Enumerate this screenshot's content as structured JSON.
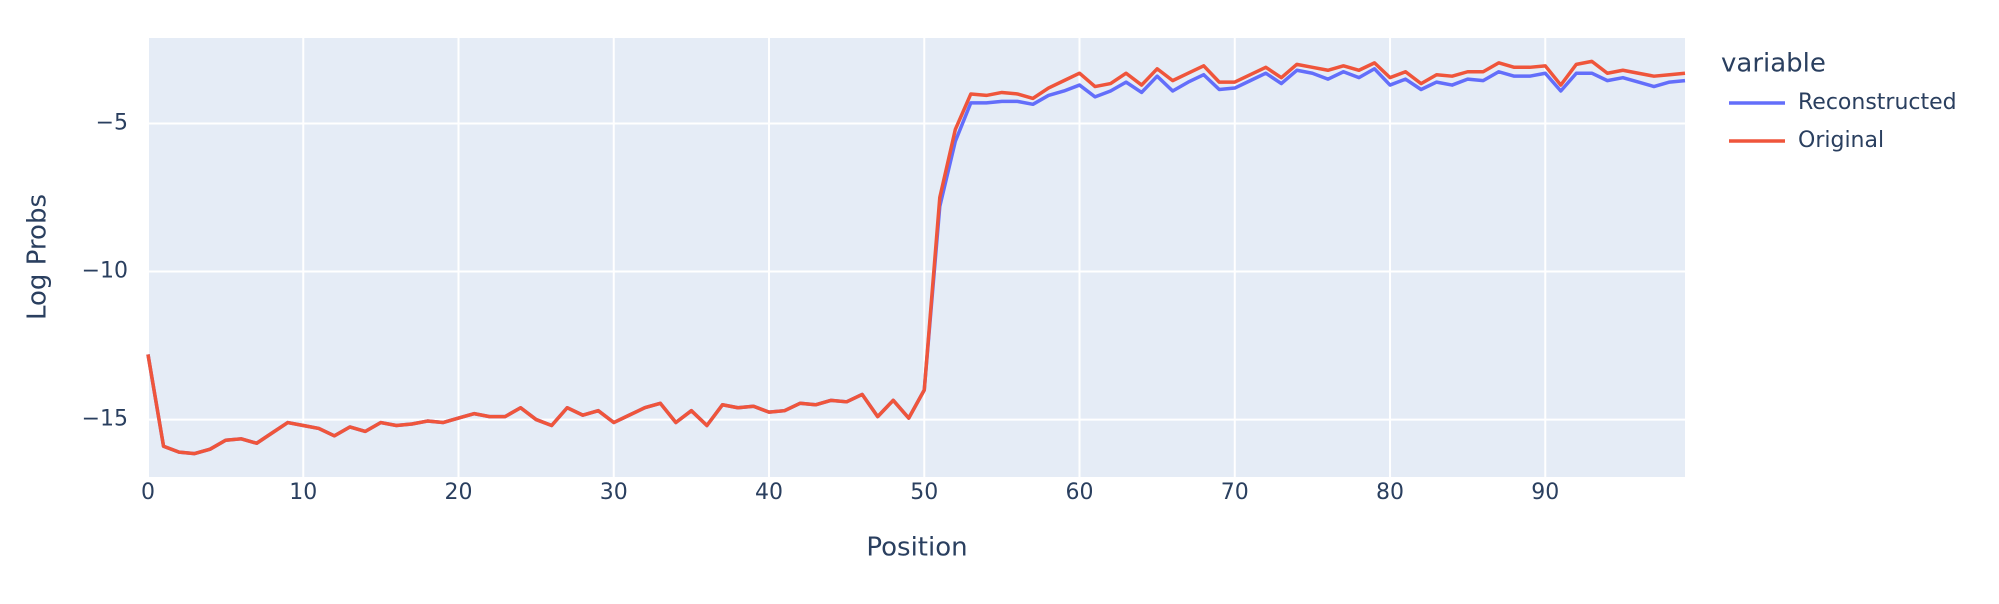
{
  "chart_data": {
    "type": "line",
    "x_label": "Position",
    "y_label": "Log Probs",
    "legend_title": "variable",
    "legend_position": "right",
    "grid": true,
    "x": [
      0,
      1,
      2,
      3,
      4,
      5,
      6,
      7,
      8,
      9,
      10,
      11,
      12,
      13,
      14,
      15,
      16,
      17,
      18,
      19,
      20,
      21,
      22,
      23,
      24,
      25,
      26,
      27,
      28,
      29,
      30,
      31,
      32,
      33,
      34,
      35,
      36,
      37,
      38,
      39,
      40,
      41,
      42,
      43,
      44,
      45,
      46,
      47,
      48,
      49,
      50,
      51,
      52,
      53,
      54,
      55,
      56,
      57,
      58,
      59,
      60,
      61,
      62,
      63,
      64,
      65,
      66,
      67,
      68,
      69,
      70,
      71,
      72,
      73,
      74,
      75,
      76,
      77,
      78,
      79,
      80,
      81,
      82,
      83,
      84,
      85,
      86,
      87,
      88,
      89,
      90,
      91,
      92,
      93,
      94,
      95,
      96,
      97,
      98,
      99
    ],
    "series": [
      {
        "name": "Reconstructed",
        "color": "#636efa",
        "values": [
          -12.8,
          -15.9,
          -16.1,
          -16.15,
          -16.0,
          -15.7,
          -15.65,
          -15.8,
          -15.45,
          -15.1,
          -15.2,
          -15.3,
          -15.55,
          -15.25,
          -15.4,
          -15.1,
          -15.2,
          -15.15,
          -15.05,
          -15.1,
          -14.95,
          -14.8,
          -14.9,
          -14.9,
          -14.6,
          -15.0,
          -15.2,
          -14.6,
          -14.85,
          -14.7,
          -15.1,
          -14.85,
          -14.6,
          -14.45,
          -15.1,
          -14.7,
          -15.2,
          -14.5,
          -14.6,
          -14.55,
          -14.75,
          -14.7,
          -14.45,
          -14.5,
          -14.35,
          -14.4,
          -14.15,
          -14.9,
          -14.35,
          -14.95,
          -14.0,
          -7.8,
          -5.6,
          -4.3,
          -4.3,
          -4.25,
          -4.25,
          -4.35,
          -4.05,
          -3.9,
          -3.7,
          -4.1,
          -3.9,
          -3.6,
          -3.95,
          -3.4,
          -3.9,
          -3.6,
          -3.35,
          -3.85,
          -3.8,
          -3.55,
          -3.3,
          -3.65,
          -3.2,
          -3.3,
          -3.5,
          -3.25,
          -3.45,
          -3.15,
          -3.7,
          -3.5,
          -3.85,
          -3.6,
          -3.7,
          -3.5,
          -3.55,
          -3.25,
          -3.4,
          -3.4,
          -3.3,
          -3.9,
          -3.3,
          -3.3,
          -3.55,
          -3.45,
          -3.6,
          -3.75,
          -3.6,
          -3.55
        ]
      },
      {
        "name": "Original",
        "color": "#ef553b",
        "values": [
          -12.8,
          -15.9,
          -16.1,
          -16.15,
          -16.0,
          -15.7,
          -15.65,
          -15.8,
          -15.45,
          -15.1,
          -15.2,
          -15.3,
          -15.55,
          -15.25,
          -15.4,
          -15.1,
          -15.2,
          -15.15,
          -15.05,
          -15.1,
          -14.95,
          -14.8,
          -14.9,
          -14.9,
          -14.6,
          -15.0,
          -15.2,
          -14.6,
          -14.85,
          -14.7,
          -15.1,
          -14.85,
          -14.6,
          -14.45,
          -15.1,
          -14.7,
          -15.2,
          -14.5,
          -14.6,
          -14.55,
          -14.75,
          -14.7,
          -14.45,
          -14.5,
          -14.35,
          -14.4,
          -14.15,
          -14.9,
          -14.35,
          -14.95,
          -14.0,
          -7.5,
          -5.2,
          -4.0,
          -4.05,
          -3.95,
          -4.0,
          -4.15,
          -3.8,
          -3.55,
          -3.3,
          -3.75,
          -3.65,
          -3.3,
          -3.7,
          -3.15,
          -3.55,
          -3.3,
          -3.05,
          -3.6,
          -3.6,
          -3.35,
          -3.1,
          -3.45,
          -3.0,
          -3.1,
          -3.2,
          -3.05,
          -3.2,
          -2.95,
          -3.45,
          -3.25,
          -3.65,
          -3.35,
          -3.4,
          -3.25,
          -3.25,
          -2.95,
          -3.1,
          -3.1,
          -3.05,
          -3.7,
          -3.0,
          -2.9,
          -3.3,
          -3.2,
          -3.3,
          -3.4,
          -3.35,
          -3.3
        ]
      }
    ],
    "xlim": [
      0,
      99
    ],
    "ylim": [
      -16.94,
      -2.11
    ],
    "xticks": [
      0,
      10,
      20,
      30,
      40,
      50,
      60,
      70,
      80,
      90
    ],
    "yticks": [
      {
        "value": -5,
        "label": "−5"
      },
      {
        "value": -10,
        "label": "−10"
      },
      {
        "value": -15,
        "label": "−15"
      }
    ]
  }
}
